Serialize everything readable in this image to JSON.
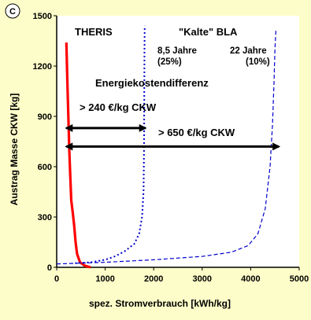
{
  "panel_badge": "C",
  "chart_data": {
    "type": "line",
    "xlabel": "spez. Stromverbrauch [kWh/kg]",
    "ylabel": "Austrag Masse CKW [kg]",
    "xlim": [
      0,
      5000
    ],
    "ylim": [
      0,
      1500
    ],
    "x_ticks": [
      0,
      1000,
      2000,
      3000,
      4000,
      5000
    ],
    "x_tick_labels": [
      "0",
      "1000",
      "2000",
      "3000",
      "4000",
      "5000"
    ],
    "y_ticks": [
      0,
      300,
      600,
      900,
      1200,
      1500
    ],
    "y_tick_labels": [
      "0",
      "300",
      "600",
      "900",
      "1200",
      "1500"
    ],
    "grid": false,
    "series": [
      {
        "name": "THERIS",
        "color": "#ff0000",
        "style": "solid",
        "points": [
          [
            700,
            0
          ],
          [
            580,
            10
          ],
          [
            480,
            30
          ],
          [
            420,
            80
          ],
          [
            390,
            150
          ],
          [
            360,
            250
          ],
          [
            330,
            330
          ],
          [
            300,
            400
          ],
          [
            280,
            550
          ],
          [
            260,
            700
          ],
          [
            240,
            900
          ],
          [
            220,
            1100
          ],
          [
            200,
            1340
          ]
        ]
      },
      {
        "name": "\"Kalte\" BLA 8,5 Jahre (25%)",
        "color": "#0000cc",
        "style": "dotted",
        "points": [
          [
            380,
            25
          ],
          [
            700,
            30
          ],
          [
            1000,
            45
          ],
          [
            1200,
            65
          ],
          [
            1400,
            95
          ],
          [
            1600,
            140
          ],
          [
            1700,
            200
          ],
          [
            1760,
            300
          ],
          [
            1790,
            450
          ],
          [
            1800,
            700
          ],
          [
            1805,
            1000
          ],
          [
            1810,
            1300
          ],
          [
            1815,
            1440
          ]
        ]
      },
      {
        "name": "\"Kalte\" BLA 22 Jahre (10%)",
        "color": "#0000cc",
        "style": "dashed",
        "points": [
          [
            0,
            20
          ],
          [
            1000,
            30
          ],
          [
            2000,
            45
          ],
          [
            3000,
            65
          ],
          [
            3600,
            90
          ],
          [
            3950,
            130
          ],
          [
            4150,
            200
          ],
          [
            4300,
            350
          ],
          [
            4400,
            600
          ],
          [
            4450,
            850
          ],
          [
            4480,
            1100
          ],
          [
            4500,
            1300
          ],
          [
            4520,
            1410
          ]
        ]
      }
    ],
    "annotations": {
      "theris_label": "THERIS",
      "bla_title": "\"Kalte\" BLA",
      "bla_a_line1": "8,5 Jahre",
      "bla_a_line2": "(25%)",
      "bla_b_line1": "22 Jahre",
      "bla_b_line2": "(10%)",
      "energy_title": "Energiekostendifferenz",
      "arrow1_label": "> 240 €/kg CKW",
      "arrow2_label": "> 650 €/kg CKW"
    },
    "arrows": [
      {
        "from_x": 200,
        "to_x": 1830,
        "y": 830
      },
      {
        "from_x": 200,
        "to_x": 4580,
        "y": 720
      }
    ]
  }
}
